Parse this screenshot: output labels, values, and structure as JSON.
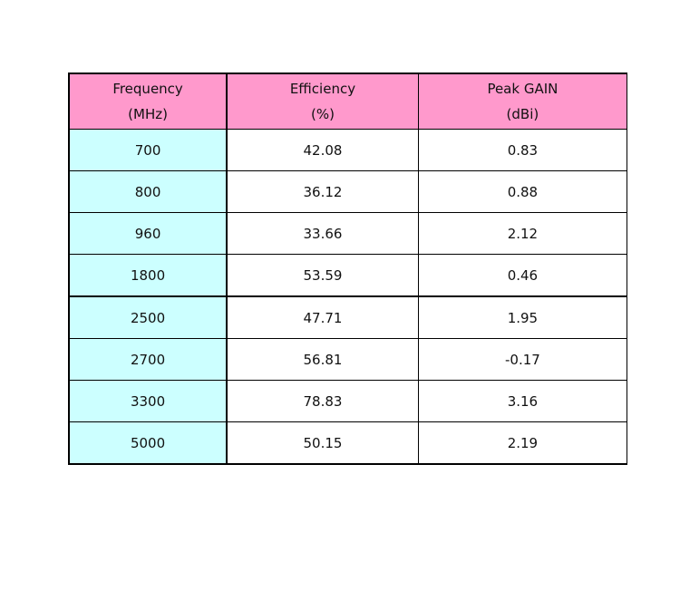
{
  "colors": {
    "header_bg": "#ff99cc",
    "frequency_bg": "#ccffff",
    "cell_bg": "#ffffff",
    "border": "#000000"
  },
  "table": {
    "headers": [
      {
        "line1": "Frequency",
        "line2": "(MHz)"
      },
      {
        "line1": "Efficiency",
        "line2": "(%)"
      },
      {
        "line1": "Peak GAIN",
        "line2": "(dBi)"
      }
    ],
    "rows": [
      {
        "frequency": "700",
        "efficiency": "42.08",
        "peak_gain": "0.83"
      },
      {
        "frequency": "800",
        "efficiency": "36.12",
        "peak_gain": "0.88"
      },
      {
        "frequency": "960",
        "efficiency": "33.66",
        "peak_gain": "2.12"
      },
      {
        "frequency": "1800",
        "efficiency": "53.59",
        "peak_gain": "0.46"
      },
      {
        "frequency": "2500",
        "efficiency": "47.71",
        "peak_gain": "1.95"
      },
      {
        "frequency": "2700",
        "efficiency": "56.81",
        "peak_gain": "-0.17"
      },
      {
        "frequency": "3300",
        "efficiency": "78.83",
        "peak_gain": "3.16"
      },
      {
        "frequency": "5000",
        "efficiency": "50.15",
        "peak_gain": "2.19"
      }
    ]
  }
}
